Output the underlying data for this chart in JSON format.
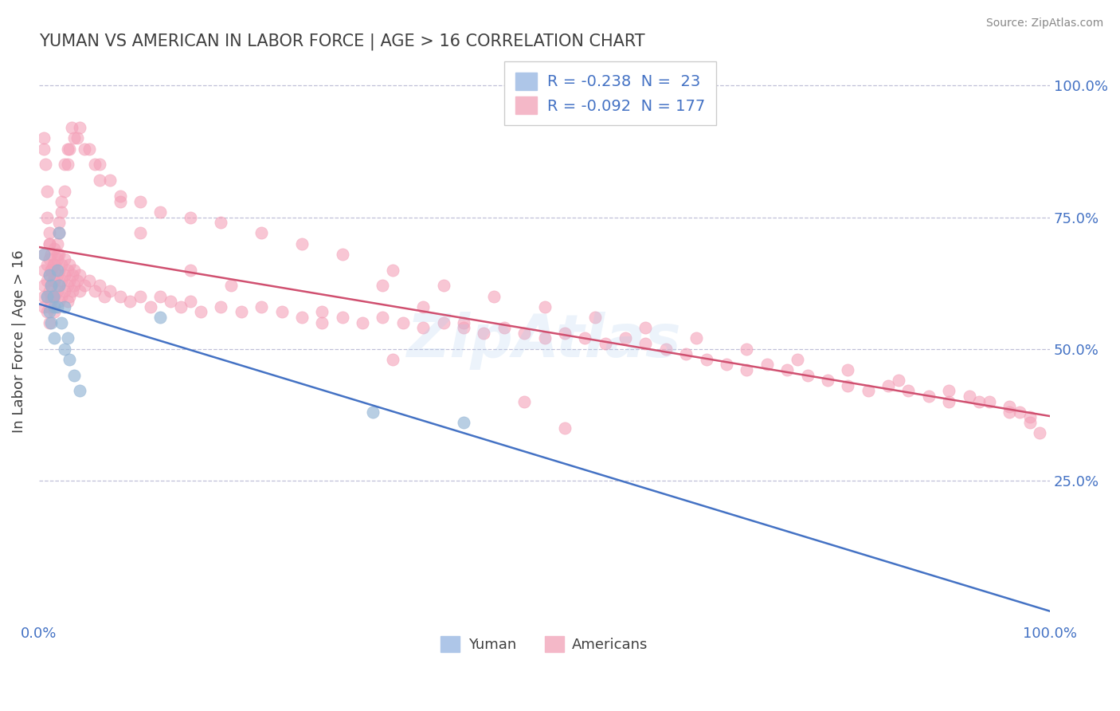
{
  "title": "YUMAN VS AMERICAN IN LABOR FORCE | AGE > 16 CORRELATION CHART",
  "source_text": "Source: ZipAtlas.com",
  "ylabel": "In Labor Force | Age > 16",
  "xmin": 0.0,
  "xmax": 1.0,
  "ymin": 0.0,
  "ymax": 1.0,
  "ytick_labels": [
    "25.0%",
    "50.0%",
    "75.0%",
    "100.0%"
  ],
  "ytick_values": [
    0.25,
    0.5,
    0.75,
    1.0
  ],
  "legend_label1": "R = -0.238  N =  23",
  "legend_label2": "R = -0.092  N = 177",
  "legend_color1": "#aec6e8",
  "legend_color2": "#f4b8c8",
  "dot_color_yuman": "#92b4d4",
  "dot_color_american": "#f4a0b8",
  "line_color_yuman": "#4472c4",
  "line_color_american": "#d05070",
  "background_color": "#ffffff",
  "grid_color": "#c0c0d8",
  "title_color": "#404040",
  "label_color": "#4472c4",
  "watermark": "ZipAtlas",
  "bottom_legend_labels": [
    "Yuman",
    "Americans"
  ],
  "yuman_x": [
    0.005,
    0.008,
    0.01,
    0.01,
    0.012,
    0.012,
    0.014,
    0.015,
    0.015,
    0.018,
    0.018,
    0.02,
    0.02,
    0.022,
    0.025,
    0.025,
    0.028,
    0.03,
    0.035,
    0.04,
    0.12,
    0.33,
    0.42
  ],
  "yuman_y": [
    0.68,
    0.6,
    0.64,
    0.57,
    0.62,
    0.55,
    0.6,
    0.58,
    0.52,
    0.65,
    0.58,
    0.72,
    0.62,
    0.55,
    0.58,
    0.5,
    0.52,
    0.48,
    0.45,
    0.42,
    0.56,
    0.38,
    0.36
  ],
  "american_x": [
    0.005,
    0.005,
    0.005,
    0.005,
    0.005,
    0.008,
    0.008,
    0.008,
    0.008,
    0.01,
    0.01,
    0.01,
    0.01,
    0.01,
    0.01,
    0.012,
    0.012,
    0.012,
    0.012,
    0.014,
    0.014,
    0.014,
    0.015,
    0.015,
    0.015,
    0.015,
    0.015,
    0.018,
    0.018,
    0.018,
    0.02,
    0.02,
    0.02,
    0.02,
    0.022,
    0.022,
    0.022,
    0.025,
    0.025,
    0.025,
    0.028,
    0.028,
    0.028,
    0.03,
    0.03,
    0.03,
    0.033,
    0.033,
    0.035,
    0.035,
    0.038,
    0.04,
    0.04,
    0.045,
    0.05,
    0.055,
    0.06,
    0.065,
    0.07,
    0.08,
    0.09,
    0.1,
    0.11,
    0.12,
    0.13,
    0.14,
    0.15,
    0.16,
    0.18,
    0.2,
    0.22,
    0.24,
    0.26,
    0.28,
    0.3,
    0.32,
    0.34,
    0.36,
    0.38,
    0.4,
    0.42,
    0.44,
    0.46,
    0.48,
    0.5,
    0.52,
    0.54,
    0.56,
    0.58,
    0.6,
    0.62,
    0.64,
    0.66,
    0.68,
    0.7,
    0.72,
    0.74,
    0.76,
    0.78,
    0.8,
    0.82,
    0.84,
    0.86,
    0.88,
    0.9,
    0.92,
    0.94,
    0.96,
    0.97,
    0.98,
    0.52,
    0.48,
    0.35,
    0.28,
    0.19,
    0.15,
    0.1,
    0.08,
    0.06,
    0.055,
    0.045,
    0.038,
    0.032,
    0.028,
    0.025,
    0.022,
    0.02,
    0.018,
    0.015,
    0.012,
    0.01,
    0.008,
    0.006,
    0.005,
    0.005,
    0.008,
    0.01,
    0.012,
    0.015,
    0.018,
    0.02,
    0.022,
    0.025,
    0.028,
    0.03,
    0.035,
    0.04,
    0.05,
    0.06,
    0.07,
    0.08,
    0.1,
    0.12,
    0.15,
    0.18,
    0.22,
    0.26,
    0.3,
    0.35,
    0.4,
    0.45,
    0.5,
    0.55,
    0.6,
    0.65,
    0.7,
    0.75,
    0.8,
    0.85,
    0.9,
    0.93,
    0.96,
    0.98,
    0.99,
    0.42,
    0.38,
    0.34
  ],
  "american_y": [
    0.68,
    0.65,
    0.62,
    0.6,
    0.58,
    0.66,
    0.63,
    0.6,
    0.57,
    0.7,
    0.67,
    0.64,
    0.61,
    0.58,
    0.55,
    0.68,
    0.65,
    0.62,
    0.59,
    0.66,
    0.63,
    0.6,
    0.69,
    0.66,
    0.63,
    0.6,
    0.57,
    0.67,
    0.64,
    0.61,
    0.68,
    0.65,
    0.62,
    0.59,
    0.66,
    0.63,
    0.6,
    0.67,
    0.64,
    0.61,
    0.65,
    0.62,
    0.59,
    0.66,
    0.63,
    0.6,
    0.64,
    0.61,
    0.65,
    0.62,
    0.63,
    0.64,
    0.61,
    0.62,
    0.63,
    0.61,
    0.62,
    0.6,
    0.61,
    0.6,
    0.59,
    0.6,
    0.58,
    0.6,
    0.59,
    0.58,
    0.59,
    0.57,
    0.58,
    0.57,
    0.58,
    0.57,
    0.56,
    0.57,
    0.56,
    0.55,
    0.56,
    0.55,
    0.54,
    0.55,
    0.54,
    0.53,
    0.54,
    0.53,
    0.52,
    0.53,
    0.52,
    0.51,
    0.52,
    0.51,
    0.5,
    0.49,
    0.48,
    0.47,
    0.46,
    0.47,
    0.46,
    0.45,
    0.44,
    0.43,
    0.42,
    0.43,
    0.42,
    0.41,
    0.4,
    0.41,
    0.4,
    0.39,
    0.38,
    0.37,
    0.35,
    0.4,
    0.48,
    0.55,
    0.62,
    0.65,
    0.72,
    0.78,
    0.82,
    0.85,
    0.88,
    0.9,
    0.92,
    0.88,
    0.85,
    0.78,
    0.74,
    0.7,
    0.65,
    0.6,
    0.72,
    0.8,
    0.85,
    0.88,
    0.9,
    0.75,
    0.7,
    0.65,
    0.6,
    0.68,
    0.72,
    0.76,
    0.8,
    0.85,
    0.88,
    0.9,
    0.92,
    0.88,
    0.85,
    0.82,
    0.79,
    0.78,
    0.76,
    0.75,
    0.74,
    0.72,
    0.7,
    0.68,
    0.65,
    0.62,
    0.6,
    0.58,
    0.56,
    0.54,
    0.52,
    0.5,
    0.48,
    0.46,
    0.44,
    0.42,
    0.4,
    0.38,
    0.36,
    0.34,
    0.55,
    0.58,
    0.62
  ]
}
